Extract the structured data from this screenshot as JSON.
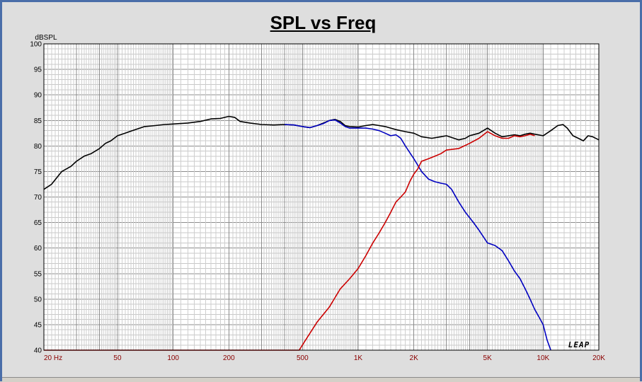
{
  "chart_data": {
    "type": "line",
    "title": "SPL vs Freq",
    "ylabel": "dBSPL",
    "xscale": "log",
    "xlim": [
      20,
      20000
    ],
    "ylim": [
      40,
      100
    ],
    "grid": true,
    "y_ticks": [
      {
        "v": 100,
        "label": "100"
      },
      {
        "v": 95,
        "label": "95"
      },
      {
        "v": 90,
        "label": "90"
      },
      {
        "v": 85,
        "label": "85"
      },
      {
        "v": 80,
        "label": "80"
      },
      {
        "v": 75,
        "label": "75"
      },
      {
        "v": 70,
        "label": "70"
      },
      {
        "v": 65,
        "label": "65"
      },
      {
        "v": 60,
        "label": "60"
      },
      {
        "v": 55,
        "label": "55"
      },
      {
        "v": 50,
        "label": "50"
      },
      {
        "v": 45,
        "label": "45"
      },
      {
        "v": 40,
        "label": "40"
      }
    ],
    "x_ticks": [
      {
        "v": 20,
        "label": "20  Hz"
      },
      {
        "v": 50,
        "label": "50"
      },
      {
        "v": 100,
        "label": "100"
      },
      {
        "v": 200,
        "label": "200"
      },
      {
        "v": 500,
        "label": "500"
      },
      {
        "v": 1000,
        "label": "1K"
      },
      {
        "v": 2000,
        "label": "2K"
      },
      {
        "v": 5000,
        "label": "5K"
      },
      {
        "v": 10000,
        "label": "10K"
      },
      {
        "v": 20000,
        "label": "20K"
      }
    ],
    "series": [
      {
        "color": "#000000",
        "points": [
          [
            20,
            71.5
          ],
          [
            22,
            72.5
          ],
          [
            25,
            75
          ],
          [
            28,
            76
          ],
          [
            30,
            77
          ],
          [
            33,
            78
          ],
          [
            36,
            78.5
          ],
          [
            40,
            79.5
          ],
          [
            43,
            80.5
          ],
          [
            46,
            81
          ],
          [
            50,
            82
          ],
          [
            55,
            82.5
          ],
          [
            60,
            83
          ],
          [
            70,
            83.8
          ],
          [
            80,
            84
          ],
          [
            90,
            84.2
          ],
          [
            100,
            84.3
          ],
          [
            120,
            84.5
          ],
          [
            140,
            84.8
          ],
          [
            160,
            85.3
          ],
          [
            180,
            85.4
          ],
          [
            200,
            85.8
          ],
          [
            215,
            85.6
          ],
          [
            230,
            84.8
          ],
          [
            260,
            84.5
          ],
          [
            300,
            84.2
          ],
          [
            350,
            84.1
          ],
          [
            400,
            84.2
          ],
          [
            450,
            84.1
          ],
          [
            500,
            83.8
          ],
          [
            550,
            83.6
          ],
          [
            600,
            84
          ],
          [
            650,
            84.5
          ],
          [
            700,
            85
          ],
          [
            750,
            85.2
          ],
          [
            800,
            84.8
          ],
          [
            850,
            84
          ],
          [
            900,
            83.8
          ],
          [
            1000,
            83.7
          ],
          [
            1100,
            84
          ],
          [
            1200,
            84.2
          ],
          [
            1300,
            84
          ],
          [
            1400,
            83.8
          ],
          [
            1500,
            83.5
          ],
          [
            1600,
            83.2
          ],
          [
            1800,
            82.8
          ],
          [
            2000,
            82.5
          ],
          [
            2200,
            81.8
          ],
          [
            2500,
            81.5
          ],
          [
            2800,
            81.8
          ],
          [
            3000,
            82
          ],
          [
            3300,
            81.5
          ],
          [
            3500,
            81.2
          ],
          [
            3800,
            81.5
          ],
          [
            4000,
            82
          ],
          [
            4500,
            82.5
          ],
          [
            5000,
            83.5
          ],
          [
            5500,
            82.5
          ],
          [
            6000,
            81.8
          ],
          [
            6500,
            82
          ],
          [
            7000,
            82.2
          ],
          [
            7500,
            82
          ],
          [
            8000,
            82.3
          ],
          [
            8500,
            82.5
          ],
          [
            9000,
            82.3
          ],
          [
            10000,
            82
          ],
          [
            11000,
            83
          ],
          [
            12000,
            84
          ],
          [
            12800,
            84.2
          ],
          [
            13500,
            83.5
          ],
          [
            14500,
            82
          ],
          [
            15500,
            81.5
          ],
          [
            16500,
            81
          ],
          [
            17500,
            82
          ],
          [
            18500,
            81.8
          ],
          [
            20000,
            81.2
          ]
        ]
      },
      {
        "color": "#0000c0",
        "points": [
          [
            400,
            84.2
          ],
          [
            450,
            84.1
          ],
          [
            500,
            83.8
          ],
          [
            550,
            83.6
          ],
          [
            600,
            84
          ],
          [
            650,
            84.4
          ],
          [
            700,
            85
          ],
          [
            750,
            85.1
          ],
          [
            800,
            84.5
          ],
          [
            850,
            83.8
          ],
          [
            900,
            83.5
          ],
          [
            1000,
            83.5
          ],
          [
            1100,
            83.5
          ],
          [
            1200,
            83.3
          ],
          [
            1300,
            83
          ],
          [
            1400,
            82.5
          ],
          [
            1500,
            82
          ],
          [
            1600,
            82.2
          ],
          [
            1700,
            81.5
          ],
          [
            1800,
            80
          ],
          [
            2000,
            77.5
          ],
          [
            2200,
            75
          ],
          [
            2400,
            73.5
          ],
          [
            2600,
            73
          ],
          [
            2800,
            72.7
          ],
          [
            3000,
            72.5
          ],
          [
            3200,
            71.5
          ],
          [
            3500,
            69
          ],
          [
            3800,
            67
          ],
          [
            4200,
            65
          ],
          [
            4500,
            63.5
          ],
          [
            5000,
            61
          ],
          [
            5500,
            60.5
          ],
          [
            6000,
            59.5
          ],
          [
            6500,
            57.5
          ],
          [
            7000,
            55.5
          ],
          [
            7500,
            54
          ],
          [
            8000,
            52
          ],
          [
            8500,
            50
          ],
          [
            9000,
            48
          ],
          [
            9500,
            46.5
          ],
          [
            10000,
            45
          ],
          [
            10500,
            42
          ],
          [
            11000,
            40
          ]
        ]
      },
      {
        "color": "#cc0000",
        "points": [
          [
            20,
            40
          ],
          [
            480,
            40
          ],
          [
            520,
            42
          ],
          [
            600,
            45.5
          ],
          [
            700,
            48.5
          ],
          [
            800,
            52
          ],
          [
            900,
            54
          ],
          [
            1000,
            56
          ],
          [
            1100,
            58.5
          ],
          [
            1200,
            61
          ],
          [
            1300,
            63
          ],
          [
            1400,
            65
          ],
          [
            1500,
            67
          ],
          [
            1600,
            69
          ],
          [
            1700,
            70
          ],
          [
            1800,
            71
          ],
          [
            1900,
            73
          ],
          [
            2000,
            74.5
          ],
          [
            2100,
            75.5
          ],
          [
            2200,
            77
          ],
          [
            2400,
            77.5
          ],
          [
            2600,
            78
          ],
          [
            2800,
            78.5
          ],
          [
            3000,
            79.2
          ],
          [
            3500,
            79.5
          ],
          [
            4000,
            80.5
          ],
          [
            4500,
            81.5
          ],
          [
            5000,
            82.8
          ],
          [
            5500,
            82
          ],
          [
            6000,
            81.5
          ],
          [
            6500,
            81.5
          ],
          [
            7000,
            82
          ],
          [
            7500,
            81.8
          ],
          [
            8000,
            82
          ],
          [
            8500,
            82.3
          ],
          [
            9000,
            82
          ]
        ]
      }
    ]
  },
  "logo": "LEAP"
}
